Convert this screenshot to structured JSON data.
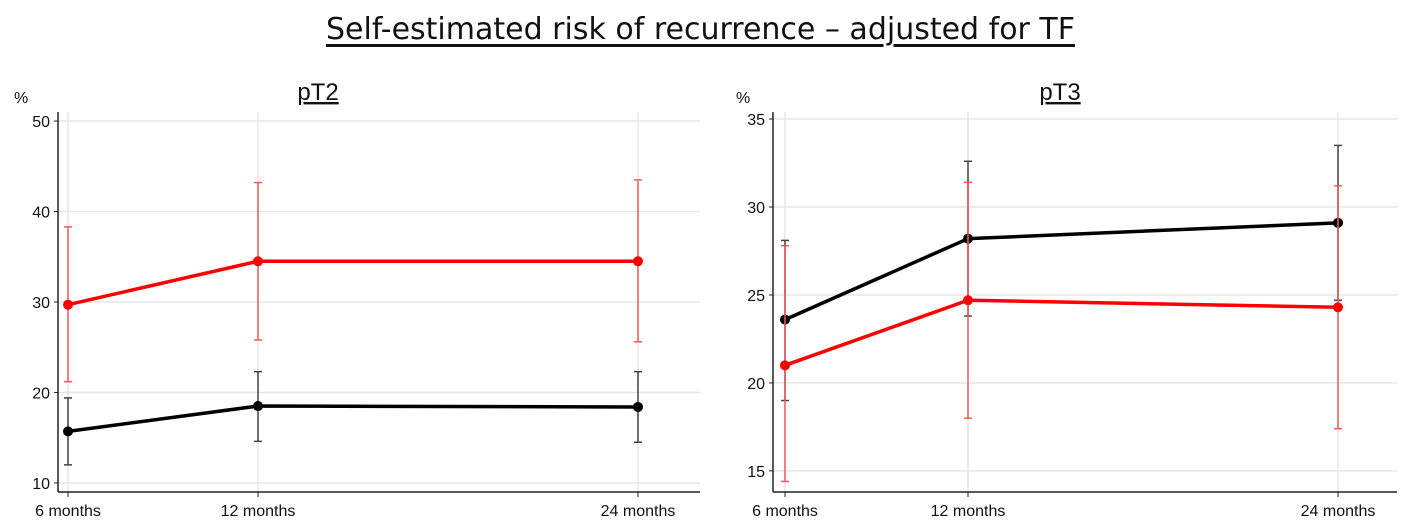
{
  "title": "Self-estimated risk of recurrence – adjusted for TF",
  "colors": {
    "black_series": "#000000",
    "red_series": "#ff0000",
    "red_errorbar": "#f25a5a",
    "black_errorbar": "#444444",
    "grid": "#e6e6e6",
    "axis": "#222222"
  },
  "chart_data": [
    {
      "type": "line",
      "title": "pT2",
      "ylabel": "%",
      "x": [
        "6 months",
        "12 months",
        "24 months"
      ],
      "yticks": [
        10,
        20,
        30,
        40,
        50
      ],
      "ylim": [
        9,
        51
      ],
      "grid": true,
      "series": [
        {
          "color": "#ff0000",
          "values": [
            29.7,
            34.5,
            34.5
          ],
          "err_low": [
            21.2,
            25.8,
            25.6
          ],
          "err_high": [
            38.3,
            43.2,
            43.5
          ]
        },
        {
          "color": "#000000",
          "values": [
            15.7,
            18.5,
            18.4
          ],
          "err_low": [
            12.0,
            14.6,
            14.5
          ],
          "err_high": [
            19.4,
            22.3,
            22.3
          ]
        }
      ]
    },
    {
      "type": "line",
      "title": "pT3",
      "ylabel": "%",
      "x": [
        "6 months",
        "12 months",
        "24 months"
      ],
      "yticks": [
        15,
        20,
        25,
        30,
        35
      ],
      "ylim": [
        13.8,
        35.4
      ],
      "grid": true,
      "series": [
        {
          "color": "#000000",
          "values": [
            23.6,
            28.2,
            29.1
          ],
          "err_low": [
            19.0,
            23.8,
            24.7
          ],
          "err_high": [
            28.1,
            32.6,
            33.5
          ]
        },
        {
          "color": "#ff0000",
          "values": [
            21.0,
            24.7,
            24.3
          ],
          "err_low": [
            14.4,
            18.0,
            17.4
          ],
          "err_high": [
            27.8,
            31.4,
            31.2
          ]
        }
      ]
    }
  ]
}
